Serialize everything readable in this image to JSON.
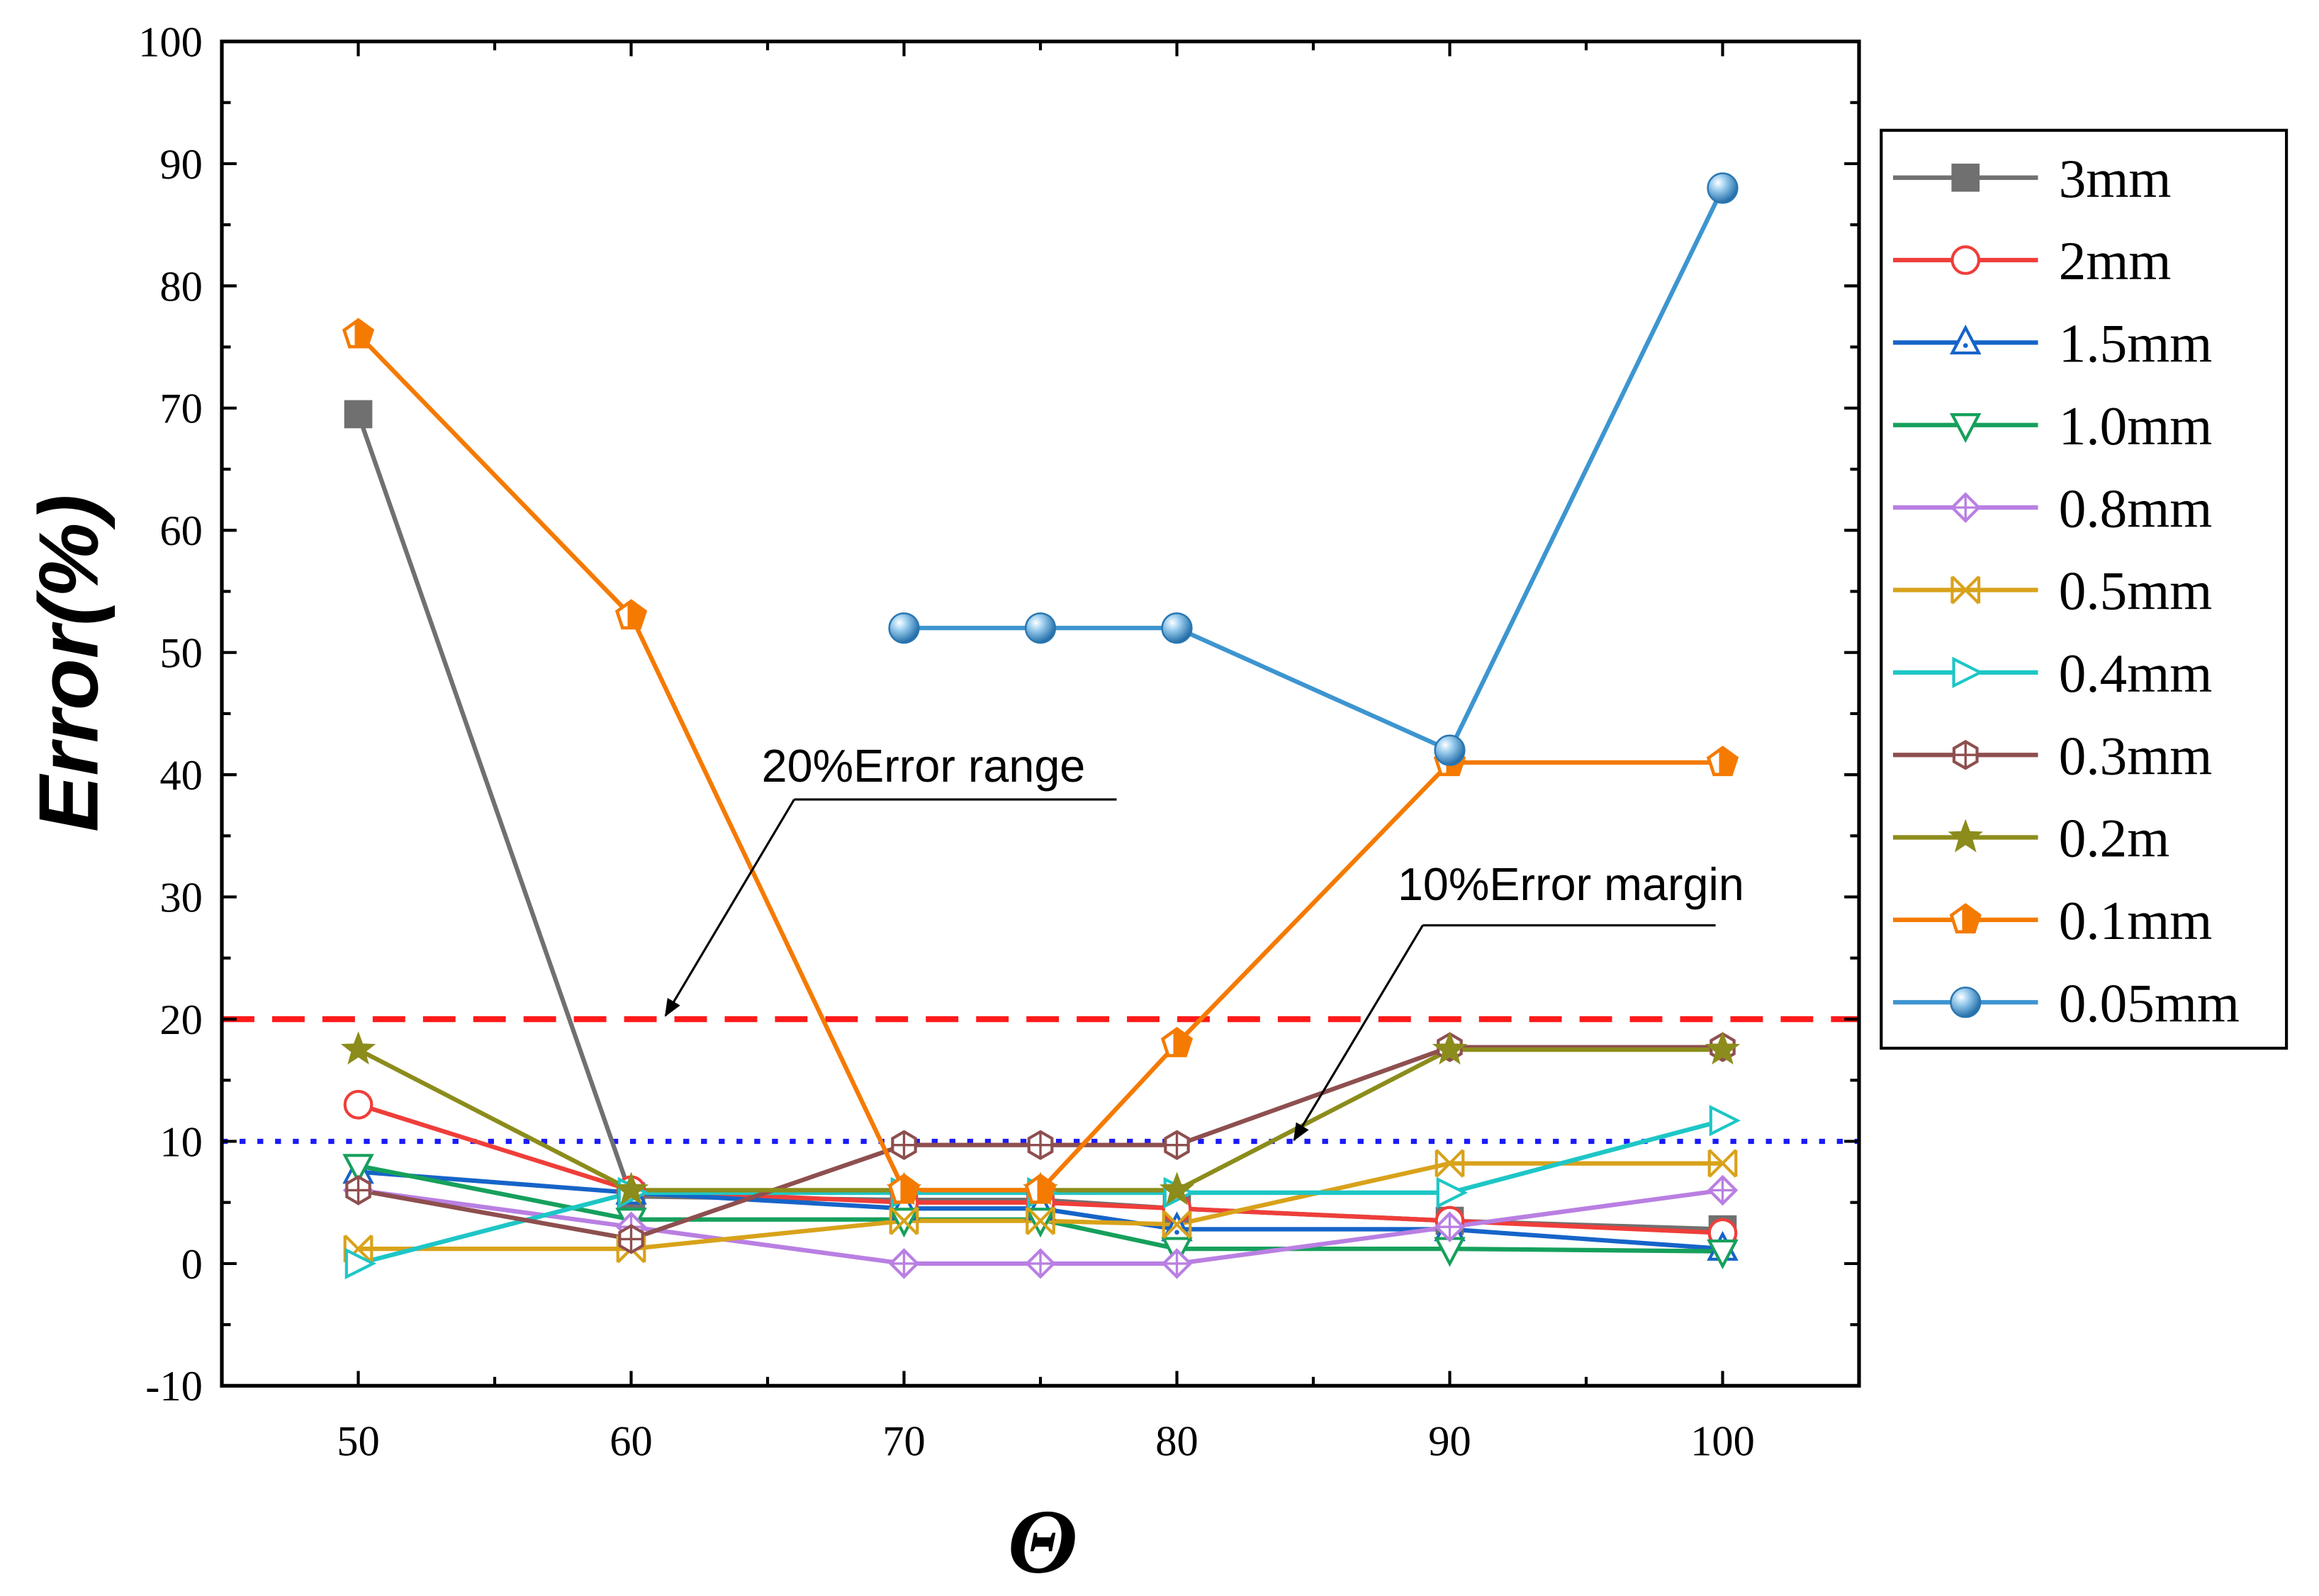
{
  "chart_data": {
    "type": "line",
    "title": "",
    "xlabel": "Θ",
    "ylabel": "Error(%)",
    "xlim": [
      45,
      105
    ],
    "ylim": [
      -10,
      100
    ],
    "xticks": [
      50,
      60,
      70,
      80,
      90,
      100
    ],
    "yticks": [
      -10,
      0,
      10,
      20,
      30,
      40,
      50,
      60,
      70,
      80,
      90,
      100
    ],
    "grid": false,
    "legend_position": "right",
    "x": [
      50,
      60,
      70,
      75,
      80,
      90,
      100
    ],
    "series": [
      {
        "name": "3mm",
        "color": "#707070",
        "marker": "square",
        "values": [
          69.5,
          5.5,
          5.2,
          5.2,
          4.5,
          3.5,
          2.8
        ]
      },
      {
        "name": "2mm",
        "color": "#ef3e3a",
        "marker": "circle",
        "values": [
          13,
          6,
          5,
          5,
          4.5,
          3.5,
          2.5
        ]
      },
      {
        "name": "1.5mm",
        "color": "#1664c8",
        "marker": "triangle-up",
        "values": [
          7.5,
          5.8,
          4.5,
          4.5,
          2.8,
          2.8,
          1.2
        ]
      },
      {
        "name": "1.0mm",
        "color": "#16a05c",
        "marker": "triangle-down",
        "values": [
          8,
          3.6,
          3.6,
          3.6,
          1.2,
          1.2,
          1.0
        ]
      },
      {
        "name": "0.8mm",
        "color": "#b97fe2",
        "marker": "diamond-cross",
        "values": [
          6,
          3,
          0,
          0,
          0,
          3,
          6
        ]
      },
      {
        "name": "0.5mm",
        "color": "#d8a21a",
        "marker": "bowtie",
        "values": [
          1.2,
          1.2,
          3.5,
          3.5,
          3.2,
          8.2,
          8.2
        ]
      },
      {
        "name": "0.4mm",
        "color": "#1ec6c6",
        "marker": "triangle-right",
        "values": [
          0,
          5.8,
          5.8,
          5.8,
          5.8,
          5.8,
          11.7
        ]
      },
      {
        "name": "0.3mm",
        "color": "#8e4f4f",
        "marker": "hexagon-cross",
        "values": [
          6,
          2,
          9.7,
          9.7,
          9.7,
          17.7,
          17.7
        ]
      },
      {
        "name": "0.2m",
        "color": "#8c8c1c",
        "marker": "star",
        "values": [
          17.5,
          6,
          6,
          6,
          6,
          17.5,
          17.5
        ]
      },
      {
        "name": "0.1mm",
        "color": "#f57a00",
        "marker": "pentagon",
        "values": [
          76,
          53,
          6,
          6,
          18,
          41,
          41
        ]
      },
      {
        "name": "0.05mm",
        "color": "#3d95d0",
        "marker": "sphere",
        "values": [
          null,
          null,
          52,
          52,
          52,
          42,
          88
        ]
      }
    ],
    "reference_lines": [
      {
        "value": 20,
        "color": "#ff1a1a",
        "style": "dashed",
        "label": "20%Error range"
      },
      {
        "value": 10,
        "color": "#1a1aff",
        "style": "dotted",
        "label": "10%Error margin"
      }
    ]
  }
}
